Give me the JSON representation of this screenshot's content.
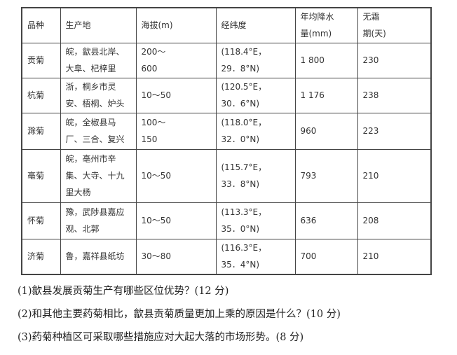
{
  "table": {
    "headers": [
      "品种",
      "生产地",
      "海拔(m)",
      "经纬度",
      "年均降水\n量(mm)",
      "无霜\n期(天)"
    ],
    "rows": [
      [
        "贡菊",
        "皖，歙县北岸、\n大阜、杞梓里",
        "200～\n600",
        "(118.4°E，\n29．8°N)",
        "1 800",
        "230"
      ],
      [
        "杭菊",
        "浙，桐乡市灵\n安、梧桐、炉头",
        "10～50",
        "(120.5°E，\n30．6°N)",
        "1 176",
        "238"
      ],
      [
        "滁菊",
        "皖，全椒县马\n厂、三合、复兴",
        "100～\n150",
        "(118.0°E，\n32．0°N)",
        "960",
        "223"
      ],
      [
        "亳菊",
        "皖，亳州市辛\n集、大寺、十九\n里大杨",
        "10～50",
        "(115.7°E，\n33．8°N)",
        "793",
        "210"
      ],
      [
        "怀菊",
        "豫，武陟县嘉应\n观、北郭",
        "10～50",
        "(113.3°E，\n35．0°N)",
        "636",
        "208"
      ],
      [
        "济菊",
        "鲁，嘉祥县纸坊",
        "30～80",
        "(116.3°E，\n35．4°N)",
        "700",
        "210"
      ]
    ]
  },
  "questions": [
    "(1)歙县发展贡菊生产有哪些区位优势？(12 分)",
    "(2)和其他主要药菊相比，歙县贡菊质量更加上乘的原因是什么？(10 分)",
    "(3)药菊种植区可采取哪些措施应对大起大落的市场形势。(8 分)"
  ]
}
